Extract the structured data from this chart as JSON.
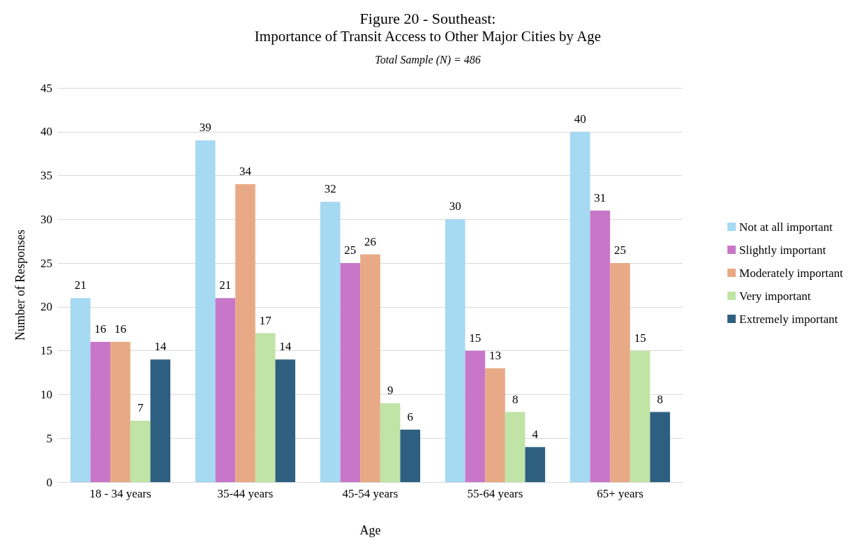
{
  "chart_data": {
    "type": "bar",
    "title": "Figure 20 - Southeast:",
    "subtitle": "Importance of Transit Access to Other Major Cities by Age",
    "annotations": [
      "Total Sample (N) = 486"
    ],
    "xlabel": "Age",
    "ylabel": "Number of Responses",
    "categories": [
      "18 - 34 years",
      "35-44 years",
      "45-54 years",
      "55-64 years",
      "65+ years"
    ],
    "series": [
      {
        "name": "Not at all important",
        "color": "#a6d9f2",
        "values": [
          21,
          39,
          32,
          30,
          40
        ]
      },
      {
        "name": "Slightly important",
        "color": "#c877c8",
        "values": [
          16,
          21,
          25,
          15,
          31
        ]
      },
      {
        "name": "Moderately important",
        "color": "#e8aa86",
        "values": [
          16,
          34,
          26,
          13,
          25
        ]
      },
      {
        "name": "Very important",
        "color": "#bfe4a6",
        "values": [
          7,
          17,
          9,
          8,
          15
        ]
      },
      {
        "name": "Extremely important",
        "color": "#2e5f80",
        "values": [
          14,
          14,
          6,
          4,
          8
        ]
      }
    ],
    "ylim": [
      0,
      45
    ],
    "yticks": [
      0,
      5,
      10,
      15,
      20,
      25,
      30,
      35,
      40,
      45
    ],
    "grid": "y",
    "legend": "right",
    "data_labels": true
  }
}
